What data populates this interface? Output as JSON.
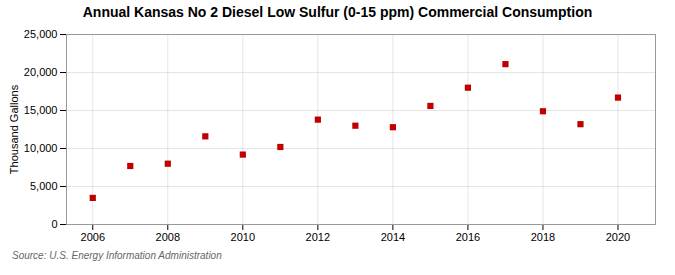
{
  "chart_data": {
    "type": "scatter",
    "title": "Annual Kansas No 2 Diesel Low Sulfur (0-15 ppm) Commercial Consumption",
    "ylabel": "Thousand Gallons",
    "annotations": [
      "Source: U.S. Energy Information Administration"
    ],
    "x": [
      2006,
      2007,
      2008,
      2009,
      2010,
      2011,
      2012,
      2013,
      2014,
      2015,
      2016,
      2017,
      2018,
      2019,
      2020
    ],
    "values": [
      3500,
      7700,
      8000,
      11600,
      9200,
      10200,
      13800,
      13000,
      12800,
      15600,
      18000,
      21100,
      14900,
      13200,
      16700
    ],
    "color": "#c00000",
    "marker": "square",
    "xlim": [
      2005.3,
      2021.0
    ],
    "ylim": [
      0,
      25000
    ],
    "xticks": [
      2006,
      2008,
      2010,
      2012,
      2014,
      2016,
      2018,
      2020
    ],
    "yticks": [
      0,
      {
        "value": 5000,
        "label": "5,000"
      },
      {
        "value": 10000,
        "label": "10,000"
      },
      {
        "value": 15000,
        "label": "15,000"
      },
      {
        "value": 20000,
        "label": "20,000"
      },
      {
        "value": 25000,
        "label": "25,000"
      }
    ],
    "grid": true
  }
}
